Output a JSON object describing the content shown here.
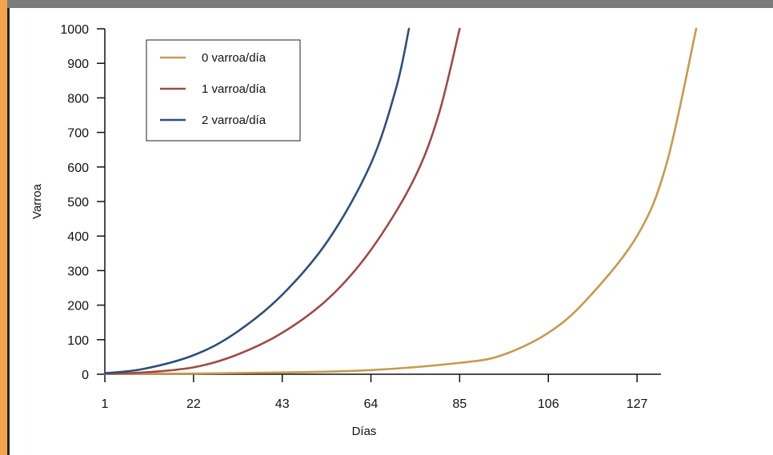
{
  "chart_data": {
    "type": "line",
    "title": "",
    "xlabel": "Días",
    "ylabel": "Varroa",
    "xlim": [
      1,
      141
    ],
    "ylim": [
      0,
      1000
    ],
    "x_ticks": [
      1,
      22,
      43,
      64,
      85,
      106,
      127
    ],
    "x_tick_labels": [
      "1",
      "22",
      "43",
      "64",
      "85",
      "106",
      "127"
    ],
    "y_ticks": [
      0,
      100,
      200,
      300,
      400,
      500,
      600,
      700,
      800,
      900,
      1000
    ],
    "y_tick_labels": [
      "0",
      "100",
      "200",
      "300",
      "400",
      "500",
      "600",
      "700",
      "800",
      "900",
      "1000"
    ],
    "grid": false,
    "legend_position": "top-left",
    "series": [
      {
        "name": "0 varroa/día",
        "color": "#c79a4e",
        "x": [
          1,
          22,
          43,
          64,
          85,
          95,
          106,
          115,
          127,
          134,
          141
        ],
        "y": [
          1,
          2,
          5,
          12,
          33,
          55,
          120,
          215,
          400,
          610,
          1000
        ]
      },
      {
        "name": "1 varroa/día",
        "color": "#9e4a46",
        "x": [
          1,
          10,
          22,
          32,
          43,
          54,
          64,
          74,
          80,
          85
        ],
        "y": [
          2,
          5,
          20,
          55,
          120,
          220,
          360,
          560,
          750,
          1000
        ]
      },
      {
        "name": "2 varroa/día",
        "color": "#2e4f78",
        "x": [
          1,
          10,
          22,
          32,
          43,
          54,
          64,
          70,
          73
        ],
        "y": [
          3,
          15,
          55,
          120,
          230,
          390,
          610,
          830,
          1000
        ]
      }
    ]
  }
}
